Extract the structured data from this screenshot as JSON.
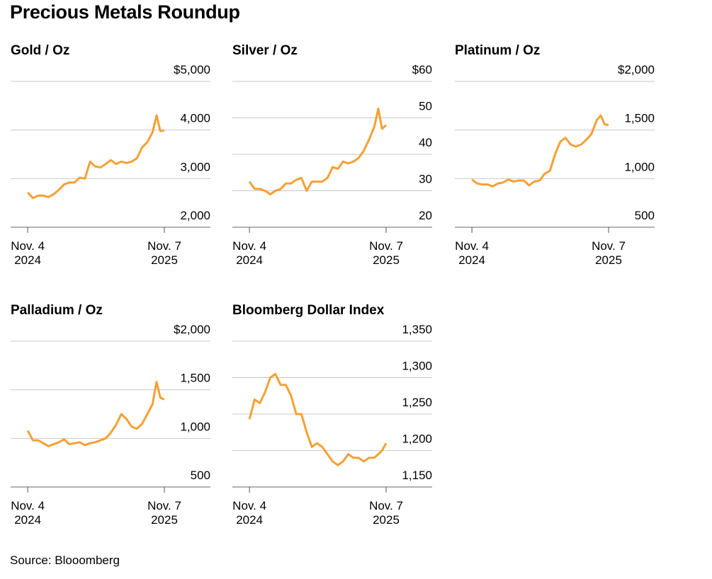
{
  "title": "Precious Metals Roundup",
  "source": "Source: Blooomberg",
  "chart_data": [
    {
      "type": "line",
      "title": "Gold / Oz",
      "color": "#f5a033",
      "grid": true,
      "x": [
        "2024-11-04",
        "2024-11-18",
        "2024-12-02",
        "2024-12-16",
        "2024-12-30",
        "2025-01-13",
        "2025-01-27",
        "2025-02-10",
        "2025-02-24",
        "2025-03-10",
        "2025-03-24",
        "2025-04-07",
        "2025-04-21",
        "2025-05-05",
        "2025-05-19",
        "2025-06-02",
        "2025-06-16",
        "2025-06-30",
        "2025-07-14",
        "2025-07-28",
        "2025-08-11",
        "2025-08-25",
        "2025-09-08",
        "2025-09-22",
        "2025-10-06",
        "2025-10-17",
        "2025-10-27",
        "2025-11-07"
      ],
      "values": [
        2714,
        2600,
        2650,
        2650,
        2620,
        2680,
        2770,
        2880,
        2920,
        2920,
        3020,
        3000,
        3350,
        3250,
        3230,
        3300,
        3380,
        3300,
        3350,
        3320,
        3350,
        3420,
        3640,
        3750,
        3950,
        4300,
        3980,
        3990
      ],
      "xlim": [
        "2024-09-19",
        "2026-03-11"
      ],
      "xticks": [
        {
          "value": "2024-11-04",
          "label": "Nov. 4\n2024"
        },
        {
          "value": "2025-11-07",
          "label": "Nov. 7\n2025"
        }
      ],
      "ylim": [
        2000,
        5000
      ],
      "yticks": [
        {
          "value": 2000,
          "label": "2,000"
        },
        {
          "value": 3000,
          "label": "3,000"
        },
        {
          "value": 4000,
          "label": "4,000"
        },
        {
          "value": 5000,
          "label": "$5,000"
        }
      ]
    },
    {
      "type": "line",
      "title": "Silver / Oz",
      "color": "#f5a033",
      "grid": true,
      "x": [
        "2024-11-04",
        "2024-11-18",
        "2024-12-02",
        "2024-12-16",
        "2024-12-30",
        "2025-01-13",
        "2025-01-27",
        "2025-02-10",
        "2025-02-24",
        "2025-03-10",
        "2025-03-24",
        "2025-04-07",
        "2025-04-21",
        "2025-05-05",
        "2025-05-19",
        "2025-06-02",
        "2025-06-16",
        "2025-06-30",
        "2025-07-14",
        "2025-07-28",
        "2025-08-11",
        "2025-08-25",
        "2025-09-08",
        "2025-09-22",
        "2025-10-06",
        "2025-10-17",
        "2025-10-27",
        "2025-11-07"
      ],
      "values": [
        32.5,
        30.5,
        30.5,
        30,
        29,
        30,
        30.5,
        32,
        32,
        33,
        33.5,
        30,
        32.5,
        32.5,
        32.5,
        33.5,
        36.5,
        36,
        38,
        37.5,
        38,
        39,
        41,
        44,
        47.5,
        52.5,
        47,
        48
      ],
      "xlim": [
        "2024-09-19",
        "2026-03-11"
      ],
      "xticks": [
        {
          "value": "2024-11-04",
          "label": "Nov. 4\n2024"
        },
        {
          "value": "2025-11-07",
          "label": "Nov. 7\n2025"
        }
      ],
      "ylim": [
        20,
        60
      ],
      "yticks": [
        20,
        30,
        40,
        50,
        {
          "value": 60,
          "label": "$60"
        }
      ]
    },
    {
      "type": "line",
      "title": "Platinum / Oz",
      "color": "#f5a033",
      "grid": true,
      "x": [
        "2024-11-04",
        "2024-11-18",
        "2024-12-02",
        "2024-12-16",
        "2024-12-30",
        "2025-01-13",
        "2025-01-27",
        "2025-02-10",
        "2025-02-24",
        "2025-03-10",
        "2025-03-24",
        "2025-04-07",
        "2025-04-21",
        "2025-05-05",
        "2025-05-19",
        "2025-06-02",
        "2025-06-16",
        "2025-06-30",
        "2025-07-14",
        "2025-07-28",
        "2025-08-11",
        "2025-08-25",
        "2025-09-08",
        "2025-09-22",
        "2025-10-06",
        "2025-10-17",
        "2025-10-27",
        "2025-11-07"
      ],
      "values": [
        990,
        950,
        940,
        940,
        920,
        950,
        960,
        990,
        970,
        980,
        980,
        930,
        970,
        980,
        1050,
        1080,
        1250,
        1380,
        1420,
        1350,
        1330,
        1350,
        1400,
        1460,
        1600,
        1650,
        1560,
        1550
      ],
      "xlim": [
        "2024-09-19",
        "2026-03-11"
      ],
      "xticks": [
        {
          "value": "2024-11-04",
          "label": "Nov. 4\n2024"
        },
        {
          "value": "2025-11-07",
          "label": "Nov. 7\n2025"
        }
      ],
      "ylim": [
        500,
        2000
      ],
      "yticks": [
        500,
        {
          "value": 1000,
          "label": "1,000"
        },
        {
          "value": 1500,
          "label": "1,500"
        },
        {
          "value": 2000,
          "label": "$2,000"
        }
      ]
    },
    {
      "type": "line",
      "title": "Palladium / Oz",
      "color": "#f5a033",
      "grid": true,
      "x": [
        "2024-11-04",
        "2024-11-18",
        "2024-12-02",
        "2024-12-16",
        "2024-12-30",
        "2025-01-13",
        "2025-01-27",
        "2025-02-10",
        "2025-02-24",
        "2025-03-10",
        "2025-03-24",
        "2025-04-07",
        "2025-04-21",
        "2025-05-05",
        "2025-05-19",
        "2025-06-02",
        "2025-06-16",
        "2025-06-30",
        "2025-07-14",
        "2025-07-28",
        "2025-08-11",
        "2025-08-25",
        "2025-09-08",
        "2025-09-22",
        "2025-10-06",
        "2025-10-17",
        "2025-10-27",
        "2025-11-07"
      ],
      "values": [
        1080,
        980,
        980,
        950,
        920,
        940,
        960,
        990,
        940,
        950,
        960,
        930,
        950,
        960,
        980,
        1000,
        1060,
        1140,
        1250,
        1200,
        1120,
        1100,
        1150,
        1250,
        1350,
        1580,
        1420,
        1400
      ],
      "xlim": [
        "2024-09-19",
        "2026-03-11"
      ],
      "xticks": [
        {
          "value": "2024-11-04",
          "label": "Nov. 4\n2024"
        },
        {
          "value": "2025-11-07",
          "label": "Nov. 7\n2025"
        }
      ],
      "ylim": [
        500,
        2000
      ],
      "yticks": [
        500,
        {
          "value": 1000,
          "label": "1,000"
        },
        {
          "value": 1500,
          "label": "1,500"
        },
        {
          "value": 2000,
          "label": "$2,000"
        }
      ]
    },
    {
      "type": "line",
      "title": "Bloomberg Dollar Index",
      "color": "#f5a033",
      "grid": true,
      "x": [
        "2024-11-04",
        "2024-11-18",
        "2024-12-02",
        "2024-12-16",
        "2024-12-30",
        "2025-01-13",
        "2025-01-27",
        "2025-02-10",
        "2025-02-24",
        "2025-03-10",
        "2025-03-24",
        "2025-04-07",
        "2025-04-21",
        "2025-05-05",
        "2025-05-19",
        "2025-06-02",
        "2025-06-16",
        "2025-06-30",
        "2025-07-14",
        "2025-07-28",
        "2025-08-11",
        "2025-08-25",
        "2025-09-08",
        "2025-09-22",
        "2025-10-06",
        "2025-10-17",
        "2025-10-27",
        "2025-11-07"
      ],
      "values": [
        1243,
        1270,
        1265,
        1280,
        1300,
        1305,
        1290,
        1290,
        1275,
        1250,
        1250,
        1225,
        1205,
        1210,
        1205,
        1195,
        1185,
        1180,
        1185,
        1195,
        1190,
        1190,
        1185,
        1190,
        1190,
        1195,
        1200,
        1210
      ],
      "xlim": [
        "2024-09-19",
        "2026-03-11"
      ],
      "xticks": [
        {
          "value": "2024-11-04",
          "label": "Nov. 4\n2024"
        },
        {
          "value": "2025-11-07",
          "label": "Nov. 7\n2025"
        }
      ],
      "ylim": [
        1150,
        1350
      ],
      "yticks": [
        {
          "value": 1150,
          "label": "1,150"
        },
        {
          "value": 1200,
          "label": "1,200"
        },
        {
          "value": 1250,
          "label": "1,250"
        },
        {
          "value": 1300,
          "label": "1,300"
        },
        {
          "value": 1350,
          "label": "1,350"
        }
      ]
    }
  ]
}
